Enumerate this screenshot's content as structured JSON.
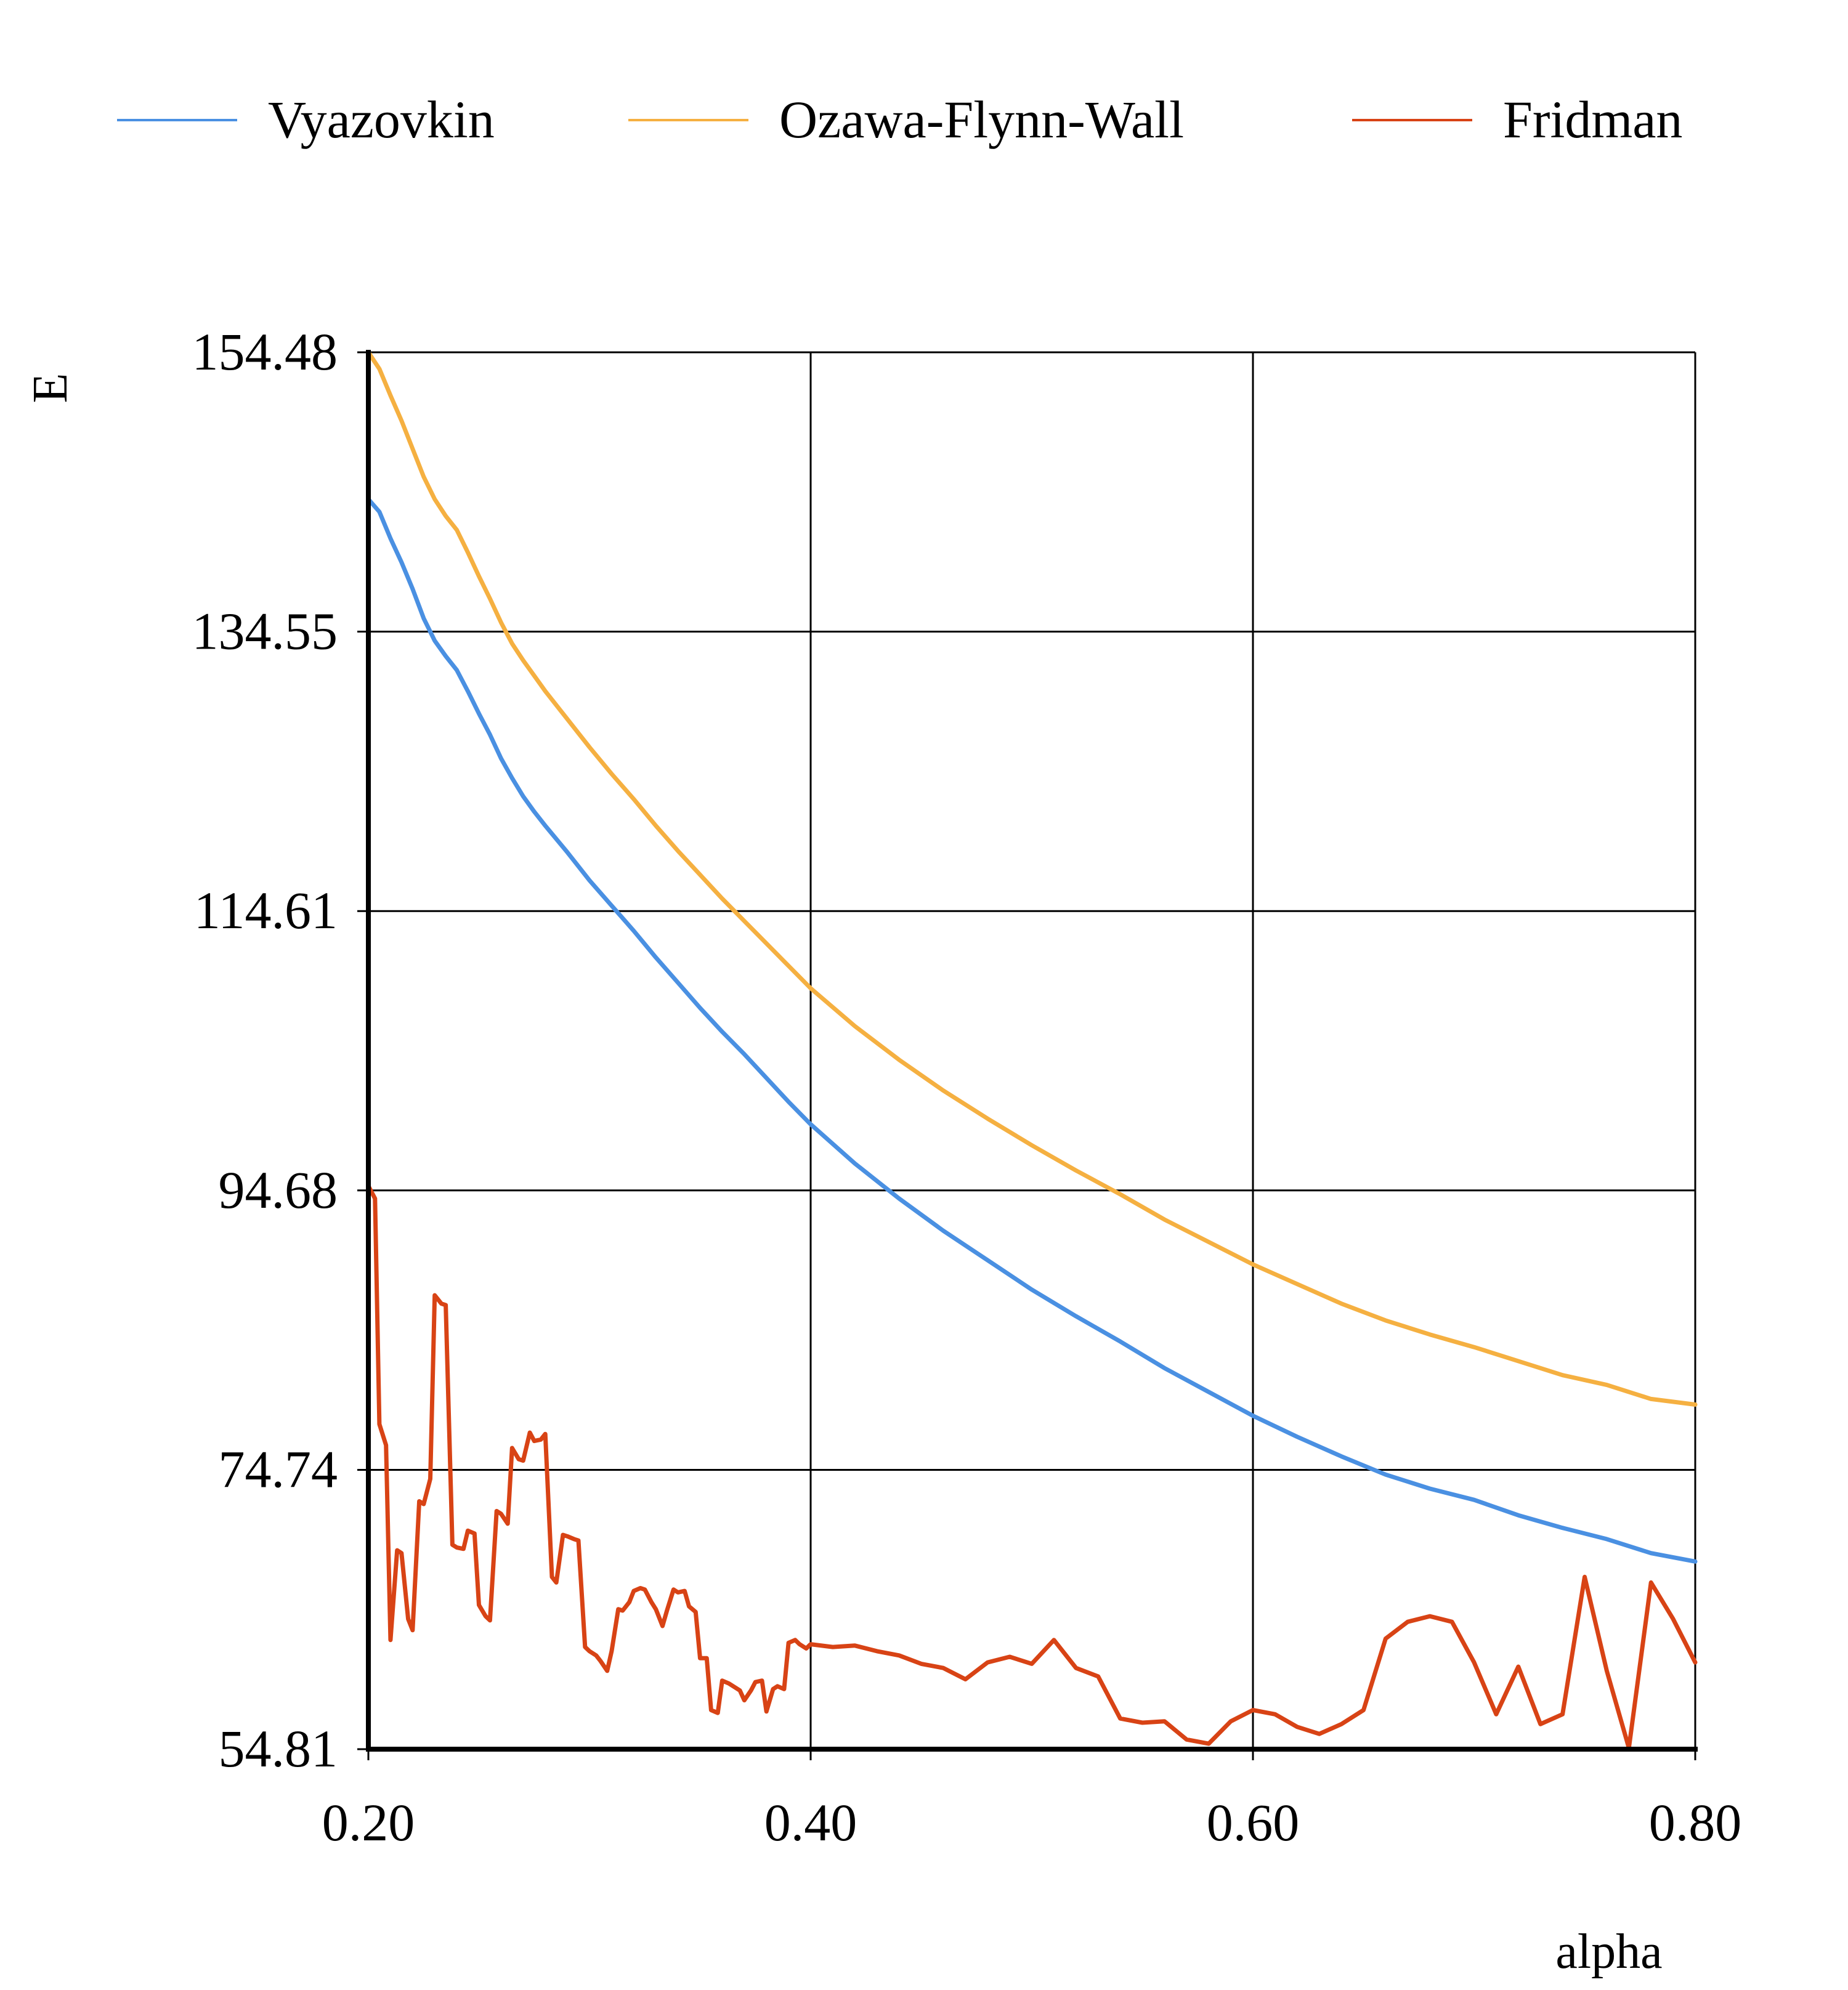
{
  "chart_data": {
    "type": "line",
    "xlabel": "alpha",
    "ylabel": "E",
    "xlim": [
      0.2,
      0.8
    ],
    "ylim": [
      54.81,
      154.48
    ],
    "xticks": [
      "0.20",
      "0.40",
      "0.60",
      "0.80"
    ],
    "yticks": [
      "54.81",
      "74.74",
      "94.68",
      "114.61",
      "134.55",
      "154.48"
    ],
    "grid": true,
    "legend_position": "top",
    "series": [
      {
        "name": "Vyazovkin",
        "color": "#4A90E2",
        "x": [
          0.2,
          0.205,
          0.21,
          0.215,
          0.22,
          0.225,
          0.23,
          0.235,
          0.24,
          0.245,
          0.25,
          0.255,
          0.26,
          0.265,
          0.27,
          0.275,
          0.28,
          0.29,
          0.3,
          0.31,
          0.32,
          0.33,
          0.34,
          0.35,
          0.36,
          0.37,
          0.38,
          0.39,
          0.4,
          0.42,
          0.44,
          0.46,
          0.48,
          0.5,
          0.52,
          0.54,
          0.56,
          0.58,
          0.6,
          0.62,
          0.64,
          0.66,
          0.68,
          0.7,
          0.72,
          0.74,
          0.76,
          0.78,
          0.8
        ],
        "y": [
          144.0,
          143.1,
          141.2,
          139.5,
          137.6,
          135.5,
          133.9,
          132.8,
          131.8,
          130.3,
          128.7,
          127.2,
          125.5,
          124.1,
          122.8,
          121.7,
          120.7,
          118.8,
          116.8,
          115.0,
          113.2,
          111.3,
          109.5,
          107.7,
          106.0,
          104.4,
          102.7,
          101.0,
          99.4,
          96.6,
          94.1,
          91.8,
          89.7,
          87.6,
          85.7,
          83.9,
          82.0,
          80.3,
          78.6,
          77.1,
          75.7,
          74.4,
          73.4,
          72.6,
          71.5,
          70.6,
          69.8,
          68.8,
          68.2
        ]
      },
      {
        "name": "Ozawa-Flynn-Wall",
        "color": "#F5B041",
        "x": [
          0.2,
          0.205,
          0.21,
          0.215,
          0.22,
          0.225,
          0.23,
          0.235,
          0.24,
          0.245,
          0.25,
          0.255,
          0.26,
          0.265,
          0.27,
          0.275,
          0.28,
          0.29,
          0.3,
          0.31,
          0.32,
          0.33,
          0.34,
          0.35,
          0.36,
          0.37,
          0.38,
          0.39,
          0.4,
          0.42,
          0.44,
          0.46,
          0.48,
          0.5,
          0.52,
          0.54,
          0.56,
          0.58,
          0.6,
          0.62,
          0.64,
          0.66,
          0.68,
          0.7,
          0.72,
          0.74,
          0.76,
          0.78,
          0.8
        ],
        "y": [
          154.48,
          153.3,
          151.4,
          149.6,
          147.6,
          145.6,
          144.0,
          142.8,
          141.8,
          140.2,
          138.5,
          136.9,
          135.2,
          133.7,
          132.5,
          131.4,
          130.3,
          128.3,
          126.3,
          124.4,
          122.6,
          120.7,
          118.9,
          117.2,
          115.5,
          113.9,
          112.3,
          110.7,
          109.1,
          106.4,
          104.0,
          101.8,
          99.8,
          97.9,
          96.1,
          94.4,
          92.6,
          91.0,
          89.4,
          88.0,
          86.6,
          85.4,
          84.4,
          83.5,
          82.5,
          81.5,
          80.8,
          79.8,
          79.4
        ]
      },
      {
        "name": "Fridman",
        "color": "#D84315",
        "x": [
          0.2,
          0.203,
          0.205,
          0.208,
          0.21,
          0.213,
          0.215,
          0.218,
          0.22,
          0.223,
          0.225,
          0.228,
          0.23,
          0.233,
          0.235,
          0.238,
          0.24,
          0.243,
          0.245,
          0.248,
          0.25,
          0.253,
          0.255,
          0.258,
          0.26,
          0.263,
          0.265,
          0.268,
          0.27,
          0.273,
          0.275,
          0.278,
          0.28,
          0.283,
          0.285,
          0.288,
          0.29,
          0.293,
          0.295,
          0.298,
          0.3,
          0.303,
          0.305,
          0.308,
          0.31,
          0.313,
          0.315,
          0.318,
          0.32,
          0.323,
          0.325,
          0.328,
          0.33,
          0.333,
          0.335,
          0.338,
          0.34,
          0.343,
          0.345,
          0.348,
          0.35,
          0.353,
          0.355,
          0.358,
          0.36,
          0.363,
          0.365,
          0.368,
          0.37,
          0.373,
          0.375,
          0.378,
          0.38,
          0.383,
          0.385,
          0.388,
          0.39,
          0.393,
          0.395,
          0.398,
          0.4,
          0.41,
          0.42,
          0.43,
          0.44,
          0.45,
          0.46,
          0.47,
          0.48,
          0.49,
          0.5,
          0.51,
          0.52,
          0.53,
          0.54,
          0.55,
          0.56,
          0.57,
          0.58,
          0.59,
          0.6,
          0.61,
          0.62,
          0.63,
          0.64,
          0.65,
          0.66,
          0.67,
          0.68,
          0.69,
          0.7,
          0.71,
          0.72,
          0.73,
          0.74,
          0.75,
          0.76,
          0.77,
          0.78,
          0.79,
          0.8
        ],
        "y": [
          95.0,
          94.1,
          78.0,
          76.5,
          62.6,
          69.0,
          68.8,
          64.1,
          63.3,
          72.5,
          72.3,
          74.1,
          87.2,
          86.6,
          86.5,
          69.4,
          69.2,
          69.1,
          70.4,
          70.2,
          65.1,
          64.3,
          64.0,
          71.8,
          71.6,
          70.9,
          76.3,
          75.5,
          75.4,
          77.4,
          76.8,
          76.9,
          77.3,
          67.1,
          66.7,
          70.1,
          70.0,
          69.8,
          69.7,
          62.1,
          61.8,
          61.5,
          61.1,
          60.4,
          61.8,
          64.8,
          64.7,
          65.3,
          66.1,
          66.3,
          66.2,
          65.3,
          64.8,
          63.6,
          64.7,
          66.2,
          66.0,
          66.1,
          65.0,
          64.6,
          61.3,
          61.3,
          57.6,
          57.4,
          59.7,
          59.5,
          59.3,
          59.0,
          58.3,
          59.0,
          59.6,
          59.7,
          57.5,
          59.1,
          59.3,
          59.1,
          62.4,
          62.6,
          62.3,
          62.0,
          62.3,
          62.1,
          62.2,
          61.8,
          61.5,
          60.9,
          60.6,
          59.8,
          61.0,
          61.4,
          60.9,
          62.6,
          60.6,
          60.0,
          57.0,
          56.7,
          56.8,
          55.5,
          55.2,
          56.8,
          57.6,
          57.3,
          56.4,
          55.9,
          56.6,
          57.6,
          62.7,
          63.9,
          64.3,
          63.9,
          61.0,
          57.3,
          60.7,
          56.6,
          57.3,
          67.1,
          60.4,
          54.9,
          66.7,
          64.1,
          61.0
        ]
      }
    ]
  }
}
